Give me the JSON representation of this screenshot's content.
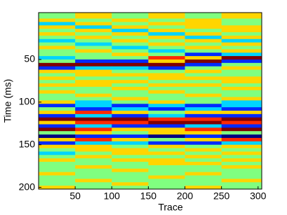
{
  "chart_data": {
    "type": "heatmap",
    "colormap": "jet",
    "clim": [
      -3,
      3
    ],
    "x_label": "Trace",
    "y_label": "Time (ms)",
    "x": [
      25,
      75,
      125,
      175,
      225,
      275
    ],
    "y": [
      0,
      4,
      8,
      12,
      16,
      20,
      24,
      28,
      32,
      36,
      40,
      44,
      48,
      52,
      56,
      60,
      64,
      68,
      72,
      76,
      80,
      84,
      88,
      92,
      96,
      100,
      104,
      108,
      112,
      116,
      120,
      124,
      128,
      132,
      136,
      140,
      144,
      148,
      152,
      156,
      160,
      164,
      168,
      172,
      176,
      180,
      184,
      188,
      192,
      196,
      200
    ],
    "z": [
      [
        0,
        1,
        0,
        1,
        0,
        1
      ],
      [
        1,
        0,
        1,
        0,
        1,
        0
      ],
      [
        -1,
        1,
        0,
        1,
        1,
        0
      ],
      [
        1,
        -1,
        1,
        0,
        1,
        1
      ],
      [
        0,
        1,
        -1,
        1,
        0,
        1
      ],
      [
        1,
        0,
        1,
        -1,
        1,
        0
      ],
      [
        0,
        1,
        0,
        1,
        -1,
        1
      ],
      [
        -1,
        0,
        1,
        0,
        1,
        -1
      ],
      [
        0,
        -1,
        0,
        1,
        0,
        1
      ],
      [
        1,
        0,
        -1,
        0,
        1,
        0
      ],
      [
        0,
        1,
        0,
        -1,
        0,
        1
      ],
      [
        0,
        0,
        1,
        0,
        -2,
        -1
      ],
      [
        -1,
        0,
        0,
        2,
        1,
        3
      ],
      [
        0,
        -2,
        -2,
        1,
        3,
        -2
      ],
      [
        3,
        3,
        3,
        3,
        -2,
        0
      ],
      [
        -2,
        -1,
        -1,
        -2,
        0,
        1
      ],
      [
        1,
        1,
        0,
        0,
        1,
        0
      ],
      [
        0,
        1,
        1,
        1,
        0,
        0
      ],
      [
        1,
        0,
        0,
        1,
        1,
        1
      ],
      [
        0,
        1,
        1,
        0,
        0,
        1
      ],
      [
        1,
        1,
        0,
        1,
        1,
        0
      ],
      [
        0,
        0,
        1,
        0,
        0,
        1
      ],
      [
        1,
        0,
        0,
        1,
        0,
        0
      ],
      [
        0,
        1,
        0,
        0,
        1,
        0
      ],
      [
        0,
        0,
        1,
        0,
        0,
        1
      ],
      [
        1,
        -1,
        0,
        1,
        0,
        -1
      ],
      [
        -2,
        -1,
        -2,
        -1,
        -2,
        -1
      ],
      [
        0,
        -2,
        -1,
        -2,
        -1,
        -2
      ],
      [
        1,
        2,
        1,
        0,
        1,
        1
      ],
      [
        -2,
        -1,
        -2,
        -1,
        -2,
        -2
      ],
      [
        3,
        3,
        3,
        2,
        2,
        3
      ],
      [
        1,
        2,
        2,
        3,
        3,
        2
      ],
      [
        -2,
        -1,
        -2,
        -2,
        -1,
        -2
      ],
      [
        3,
        2,
        1,
        1,
        2,
        3
      ],
      [
        0,
        1,
        0,
        1,
        1,
        0
      ],
      [
        -3,
        -2,
        -2,
        -3,
        -2,
        -3
      ],
      [
        1,
        2,
        1,
        0,
        1,
        2
      ],
      [
        -2,
        -1,
        -1,
        -2,
        -2,
        -1
      ],
      [
        1,
        1,
        0,
        1,
        0,
        1
      ],
      [
        0,
        1,
        1,
        0,
        1,
        0
      ],
      [
        -1,
        0,
        1,
        1,
        0,
        1
      ],
      [
        0,
        1,
        0,
        0,
        1,
        0
      ],
      [
        1,
        0,
        1,
        1,
        0,
        1
      ],
      [
        0,
        0,
        0,
        1,
        1,
        0
      ],
      [
        0,
        1,
        0,
        0,
        0,
        1
      ],
      [
        0,
        0,
        1,
        0,
        0,
        0
      ],
      [
        1,
        0,
        0,
        0,
        1,
        0
      ],
      [
        0,
        0,
        0,
        1,
        0,
        0
      ],
      [
        0,
        1,
        0,
        0,
        0,
        1
      ],
      [
        0,
        0,
        1,
        0,
        0,
        0
      ],
      [
        1,
        0,
        0,
        0,
        1,
        0
      ]
    ],
    "xlim": [
      0,
      305
    ],
    "ylim": [
      -5,
      202
    ],
    "xticks": [
      50,
      100,
      150,
      200,
      250,
      300
    ],
    "yticks": [
      50,
      100,
      150,
      200
    ]
  }
}
